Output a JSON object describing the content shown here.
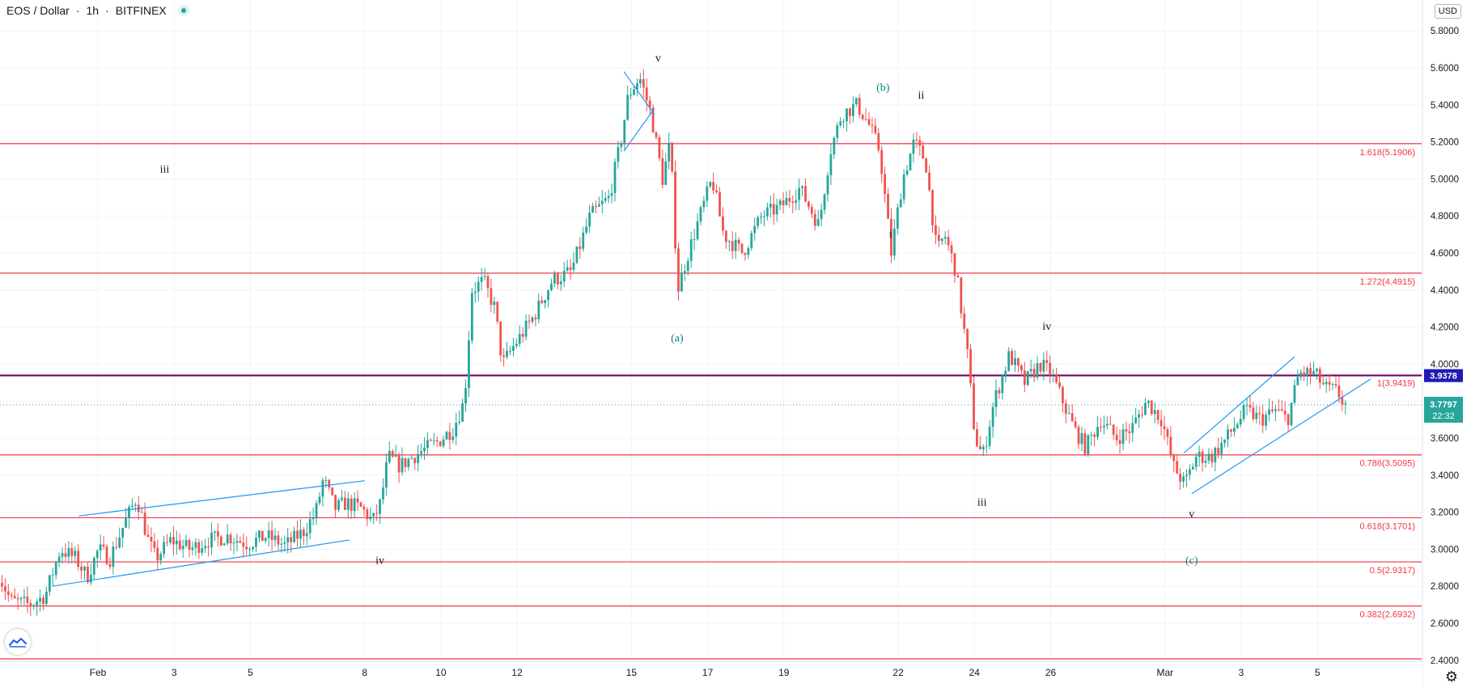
{
  "header": {
    "symbol": "EOS / Dollar",
    "interval": "1h",
    "exchange": "BITFINEX",
    "separator": "·"
  },
  "currency_label": "USD",
  "price_scale": {
    "ticks": [
      "5.8000",
      "5.6000",
      "5.4000",
      "5.2000",
      "5.0000",
      "4.8000",
      "4.6000",
      "4.4000",
      "4.2000",
      "4.0000",
      "3.8000",
      "3.6000",
      "3.4000",
      "3.2000",
      "3.0000",
      "2.8000",
      "2.6000",
      "2.4000"
    ]
  },
  "time_scale": {
    "labels": [
      "Feb",
      "3",
      "5",
      "8",
      "10",
      "12",
      "15",
      "17",
      "19",
      "22",
      "24",
      "26",
      "Mar",
      "3",
      "5"
    ]
  },
  "markers": {
    "last_price": "3.7797",
    "countdown": "22:32",
    "line_value": "3.9378"
  },
  "fib_levels": [
    {
      "label": "1.618(5.1906)",
      "value": 5.1906
    },
    {
      "label": "1.272(4.4915)",
      "value": 4.4915
    },
    {
      "label": "1(3.9419)",
      "value": 3.9419
    },
    {
      "label": "0.786(3.5095)",
      "value": 3.5095
    },
    {
      "label": "0.618(3.1701)",
      "value": 3.1701
    },
    {
      "label": "0.5(2.9317)",
      "value": 2.9317
    },
    {
      "label": "0.382(2.6932)",
      "value": 2.6932
    }
  ],
  "wave_labels": [
    {
      "text": "iii",
      "day": 1.75,
      "price": 5.0,
      "anchor": "above"
    },
    {
      "text": "iv",
      "day": 7.4,
      "price": 3.0,
      "anchor": "below"
    },
    {
      "text": "v",
      "day": 14.7,
      "price": 5.6,
      "anchor": "above"
    },
    {
      "text": "(a)",
      "day": 15.2,
      "price": 4.2,
      "anchor": "below"
    },
    {
      "text": "(b)",
      "day": 20.6,
      "price": 5.44,
      "anchor": "above"
    },
    {
      "text": "i",
      "day": 20.8,
      "price": 4.65,
      "anchor": "above"
    },
    {
      "text": "ii",
      "day": 21.6,
      "price": 5.4,
      "anchor": "above"
    },
    {
      "text": "iii",
      "day": 23.2,
      "price": 3.2,
      "anchor": "above"
    },
    {
      "text": "iv",
      "day": 24.9,
      "price": 4.15,
      "anchor": "above"
    },
    {
      "text": "v",
      "day": 28.7,
      "price": 3.25,
      "anchor": "below"
    },
    {
      "text": "(c)",
      "day": 28.7,
      "price": 3.0,
      "anchor": "below"
    }
  ],
  "chart_data": {
    "type": "candlestick",
    "symbol": "EOS / Dollar",
    "interval": "1h",
    "x_unit": "days from Feb 1",
    "ylim": [
      2.4,
      5.85
    ],
    "last_price": 3.7797,
    "horizontal_line": 3.9378,
    "up_color": "#26a69a",
    "down_color": "#ef5350",
    "fib_color": "#f23645",
    "trendline_color": "#2196f3",
    "wave_label_color": "#131722",
    "degree_label_color": "#00897b",
    "price_path": [
      [
        -2.6,
        2.9
      ],
      [
        -2.2,
        2.72
      ],
      [
        -1.7,
        2.7
      ],
      [
        -1.3,
        2.75
      ],
      [
        -0.9,
        3.0
      ],
      [
        -0.5,
        2.95
      ],
      [
        -0.2,
        2.85
      ],
      [
        0.1,
        3.0
      ],
      [
        0.4,
        2.95
      ],
      [
        0.8,
        3.15
      ],
      [
        1.1,
        3.28
      ],
      [
        1.4,
        3.05
      ],
      [
        1.6,
        2.95
      ],
      [
        2.0,
        3.05
      ],
      [
        2.5,
        3.0
      ],
      [
        3.0,
        3.05
      ],
      [
        3.5,
        3.07
      ],
      [
        4.0,
        3.03
      ],
      [
        4.5,
        3.07
      ],
      [
        5.0,
        3.02
      ],
      [
        5.5,
        3.1
      ],
      [
        5.8,
        3.2
      ],
      [
        6.0,
        3.38
      ],
      [
        6.3,
        3.22
      ],
      [
        6.6,
        3.25
      ],
      [
        7.0,
        3.22
      ],
      [
        7.3,
        3.15
      ],
      [
        7.5,
        3.25
      ],
      [
        7.7,
        3.5
      ],
      [
        8.0,
        3.45
      ],
      [
        8.5,
        3.52
      ],
      [
        9.0,
        3.58
      ],
      [
        9.4,
        3.65
      ],
      [
        9.7,
        3.8
      ],
      [
        9.9,
        4.4
      ],
      [
        10.2,
        4.45
      ],
      [
        10.5,
        4.3
      ],
      [
        10.7,
        4.0
      ],
      [
        11.0,
        4.1
      ],
      [
        11.5,
        4.25
      ],
      [
        12.0,
        4.45
      ],
      [
        12.5,
        4.5
      ],
      [
        13.0,
        4.8
      ],
      [
        13.5,
        4.9
      ],
      [
        13.8,
        5.2
      ],
      [
        14.0,
        5.45
      ],
      [
        14.3,
        5.55
      ],
      [
        14.6,
        5.35
      ],
      [
        14.9,
        5.0
      ],
      [
        15.1,
        5.2
      ],
      [
        15.3,
        4.4
      ],
      [
        15.5,
        4.55
      ],
      [
        15.8,
        4.75
      ],
      [
        16.2,
        5.0
      ],
      [
        16.5,
        4.7
      ],
      [
        17.0,
        4.6
      ],
      [
        17.5,
        4.8
      ],
      [
        18.0,
        4.85
      ],
      [
        18.5,
        4.95
      ],
      [
        19.0,
        4.75
      ],
      [
        19.3,
        5.15
      ],
      [
        19.6,
        5.35
      ],
      [
        20.0,
        5.4
      ],
      [
        20.3,
        5.3
      ],
      [
        20.6,
        5.15
      ],
      [
        20.9,
        4.6
      ],
      [
        21.2,
        5.0
      ],
      [
        21.5,
        5.2
      ],
      [
        21.8,
        5.1
      ],
      [
        22.1,
        4.6
      ],
      [
        22.3,
        4.7
      ],
      [
        22.6,
        4.5
      ],
      [
        22.9,
        4.05
      ],
      [
        23.1,
        3.6
      ],
      [
        23.3,
        3.5
      ],
      [
        23.6,
        3.8
      ],
      [
        24.0,
        4.05
      ],
      [
        24.4,
        3.9
      ],
      [
        24.8,
        4.0
      ],
      [
        25.1,
        3.95
      ],
      [
        25.4,
        3.8
      ],
      [
        25.7,
        3.65
      ],
      [
        26.0,
        3.55
      ],
      [
        26.4,
        3.7
      ],
      [
        26.8,
        3.6
      ],
      [
        27.2,
        3.65
      ],
      [
        27.6,
        3.8
      ],
      [
        28.0,
        3.7
      ],
      [
        28.3,
        3.45
      ],
      [
        28.6,
        3.35
      ],
      [
        28.9,
        3.5
      ],
      [
        29.3,
        3.5
      ],
      [
        29.7,
        3.6
      ],
      [
        30.2,
        3.75
      ],
      [
        30.6,
        3.7
      ],
      [
        31.0,
        3.75
      ],
      [
        31.3,
        3.7
      ],
      [
        31.6,
        3.95
      ],
      [
        32.0,
        3.95
      ],
      [
        32.3,
        3.87
      ],
      [
        32.6,
        3.85
      ],
      [
        32.8,
        3.78
      ]
    ],
    "trendlines": [
      [
        [
          -1.2,
          2.8
        ],
        [
          6.6,
          3.05
        ]
      ],
      [
        [
          -0.5,
          3.18
        ],
        [
          7.0,
          3.37
        ]
      ],
      [
        [
          13.8,
          5.58
        ],
        [
          14.6,
          5.35
        ]
      ],
      [
        [
          13.8,
          5.15
        ],
        [
          14.6,
          5.38
        ]
      ],
      [
        [
          28.7,
          3.3
        ],
        [
          33.4,
          3.92
        ]
      ],
      [
        [
          28.5,
          3.52
        ],
        [
          31.4,
          4.04
        ]
      ]
    ]
  }
}
